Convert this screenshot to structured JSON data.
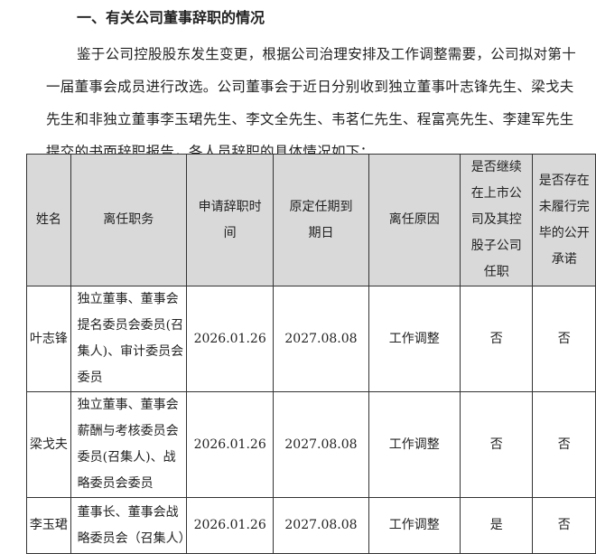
{
  "heading": "一、有关公司董事辞职的情况",
  "paragraph": "鉴于公司控股股东发生变更，根据公司治理安排及工作调整需要，公司拟对第十一届董事会成员进行改选。公司董事会于近日分别收到独立董事叶志锋先生、梁戈夫先生和非独立董事李玉珺先生、李文全先生、韦茗仁先生、程富亮先生、李建军先生提交的书面辞职报告，各人员辞职的具体情况如下：",
  "table": {
    "headers": [
      "姓名",
      "离任职务",
      "申请辞职时间",
      "原定任期到期日",
      "离任原因",
      "是否继续在上市公司及其控股子公司任职",
      "是否存在未履行完毕的公开承诺"
    ],
    "rows": [
      [
        "叶志锋",
        "独立董事、董事会提名委员会委员(召集人)、审计委员会委员",
        "2026.01.26",
        "2027.08.08",
        "工作调整",
        "否",
        "否"
      ],
      [
        "梁戈夫",
        "独立董事、董事会薪酬与考核委员会委员(召集人)、战略委员会委员",
        "2026.01.26",
        "2027.08.08",
        "工作调整",
        "否",
        "否"
      ],
      [
        "李玉珺",
        "董事长、董事会战略委员会（召集人）",
        "2026.01.26",
        "2027.08.08",
        "工作调整",
        "是",
        "否"
      ]
    ]
  }
}
